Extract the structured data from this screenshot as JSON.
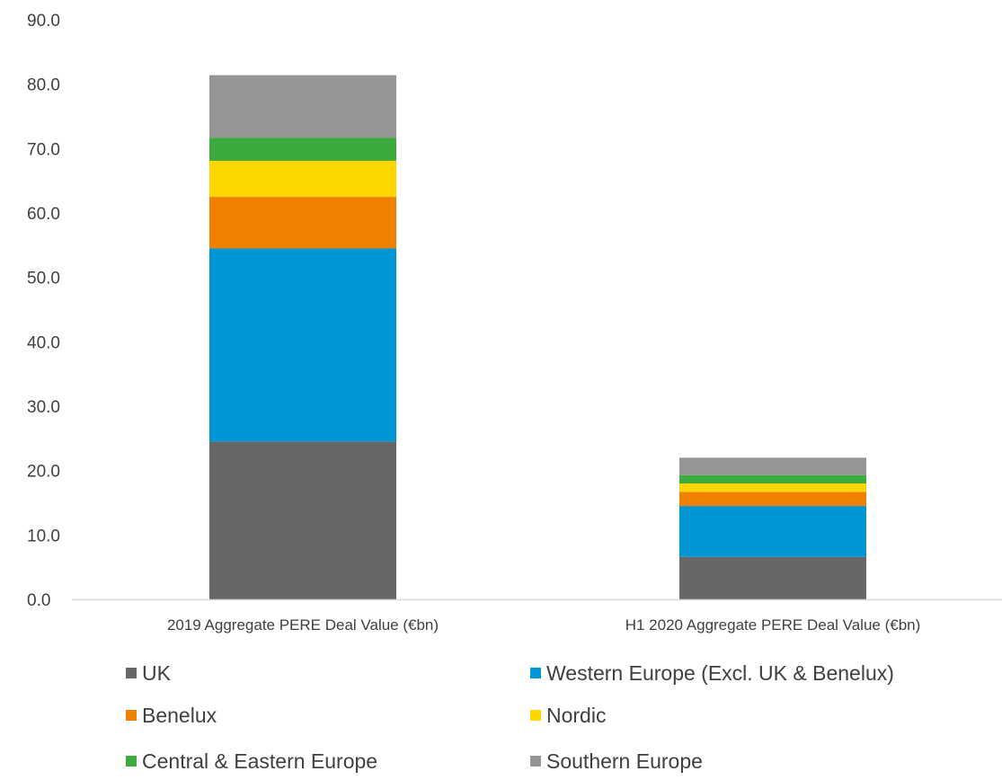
{
  "chart_data": {
    "type": "bar",
    "stacked": true,
    "categories": [
      "2019 Aggregate PERE Deal Value (€bn)",
      "H1 2020 Aggregate PERE Deal Value (€bn)"
    ],
    "series": [
      {
        "name": "UK",
        "color": "#686767",
        "values": [
          24.5,
          6.6
        ]
      },
      {
        "name": "Western Europe (Excl. UK & Benelux)",
        "color": "#0096D6",
        "values": [
          30.0,
          7.9
        ]
      },
      {
        "name": "Benelux",
        "color": "#F08000",
        "values": [
          8.0,
          2.2
        ]
      },
      {
        "name": "Nordic",
        "color": "#FFD700",
        "values": [
          5.6,
          1.3
        ]
      },
      {
        "name": "Central & Eastern Europe",
        "color": "#3CAA3C",
        "values": [
          3.6,
          1.3
        ]
      },
      {
        "name": "Southern Europe",
        "color": "#959595",
        "values": [
          9.7,
          2.7
        ]
      }
    ],
    "yticks": [
      "0.0",
      "10.0",
      "20.0",
      "30.0",
      "40.0",
      "50.0",
      "60.0",
      "70.0",
      "80.0",
      "90.0"
    ],
    "ylim": [
      0,
      90
    ],
    "grid": false,
    "legend_position": "bottom",
    "axis_color": "#D9D9D9"
  }
}
